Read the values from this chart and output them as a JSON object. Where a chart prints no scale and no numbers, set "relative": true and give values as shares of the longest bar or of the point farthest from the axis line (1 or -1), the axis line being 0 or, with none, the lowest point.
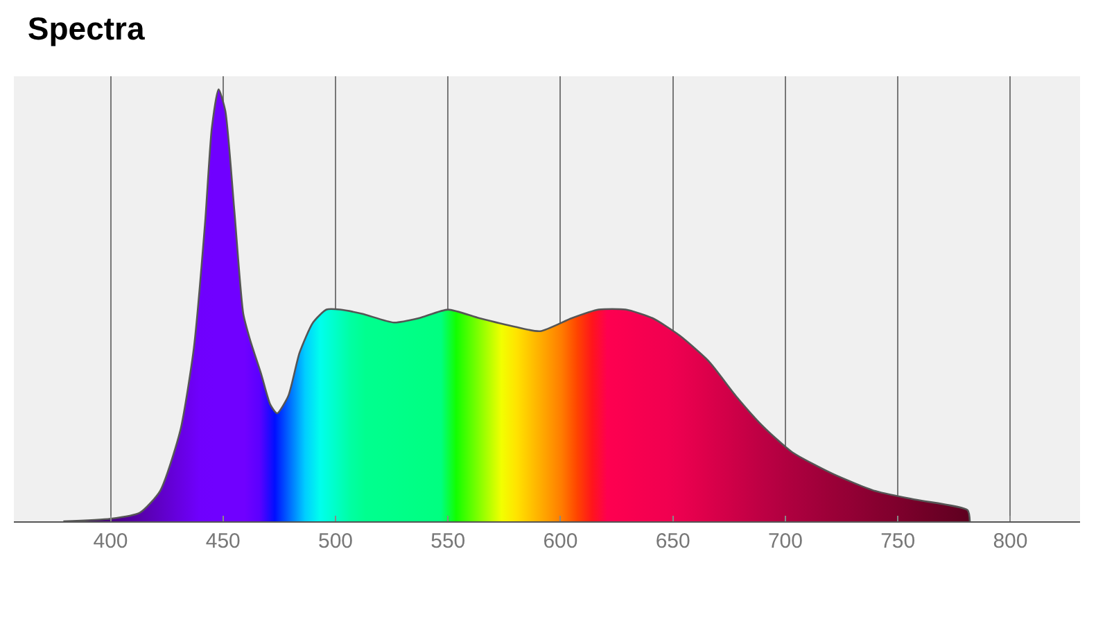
{
  "chart_data": {
    "type": "area",
    "title": "Spectra",
    "relative": true,
    "x": [
      379,
      400,
      413,
      422,
      431,
      437,
      442,
      445,
      448,
      451,
      455,
      459,
      462,
      467,
      471,
      474,
      479,
      484,
      490,
      496,
      502,
      512,
      526,
      537,
      550,
      564,
      580,
      591,
      605,
      617,
      629,
      641,
      653,
      666,
      678,
      690,
      703,
      721,
      740,
      758,
      781,
      782
    ],
    "series": [
      {
        "color": "#555555",
        "values": [
          0,
          0.006,
          0.02,
          0.07,
          0.21,
          0.4,
          0.69,
          0.91,
          1,
          0.95,
          0.72,
          0.48,
          0.42,
          0.34,
          0.27,
          0.25,
          0.29,
          0.39,
          0.46,
          0.49,
          0.49,
          0.48,
          0.46,
          0.47,
          0.49,
          0.47,
          0.45,
          0.44,
          0.47,
          0.49,
          0.49,
          0.47,
          0.43,
          0.37,
          0.29,
          0.22,
          0.16,
          0.11,
          0.07,
          0.05,
          0.026,
          0
        ]
      }
    ],
    "xlim": [
      357,
      831
    ],
    "xticks": [
      400,
      450,
      500,
      550,
      600,
      650,
      700,
      750,
      800
    ],
    "grid": "x"
  }
}
